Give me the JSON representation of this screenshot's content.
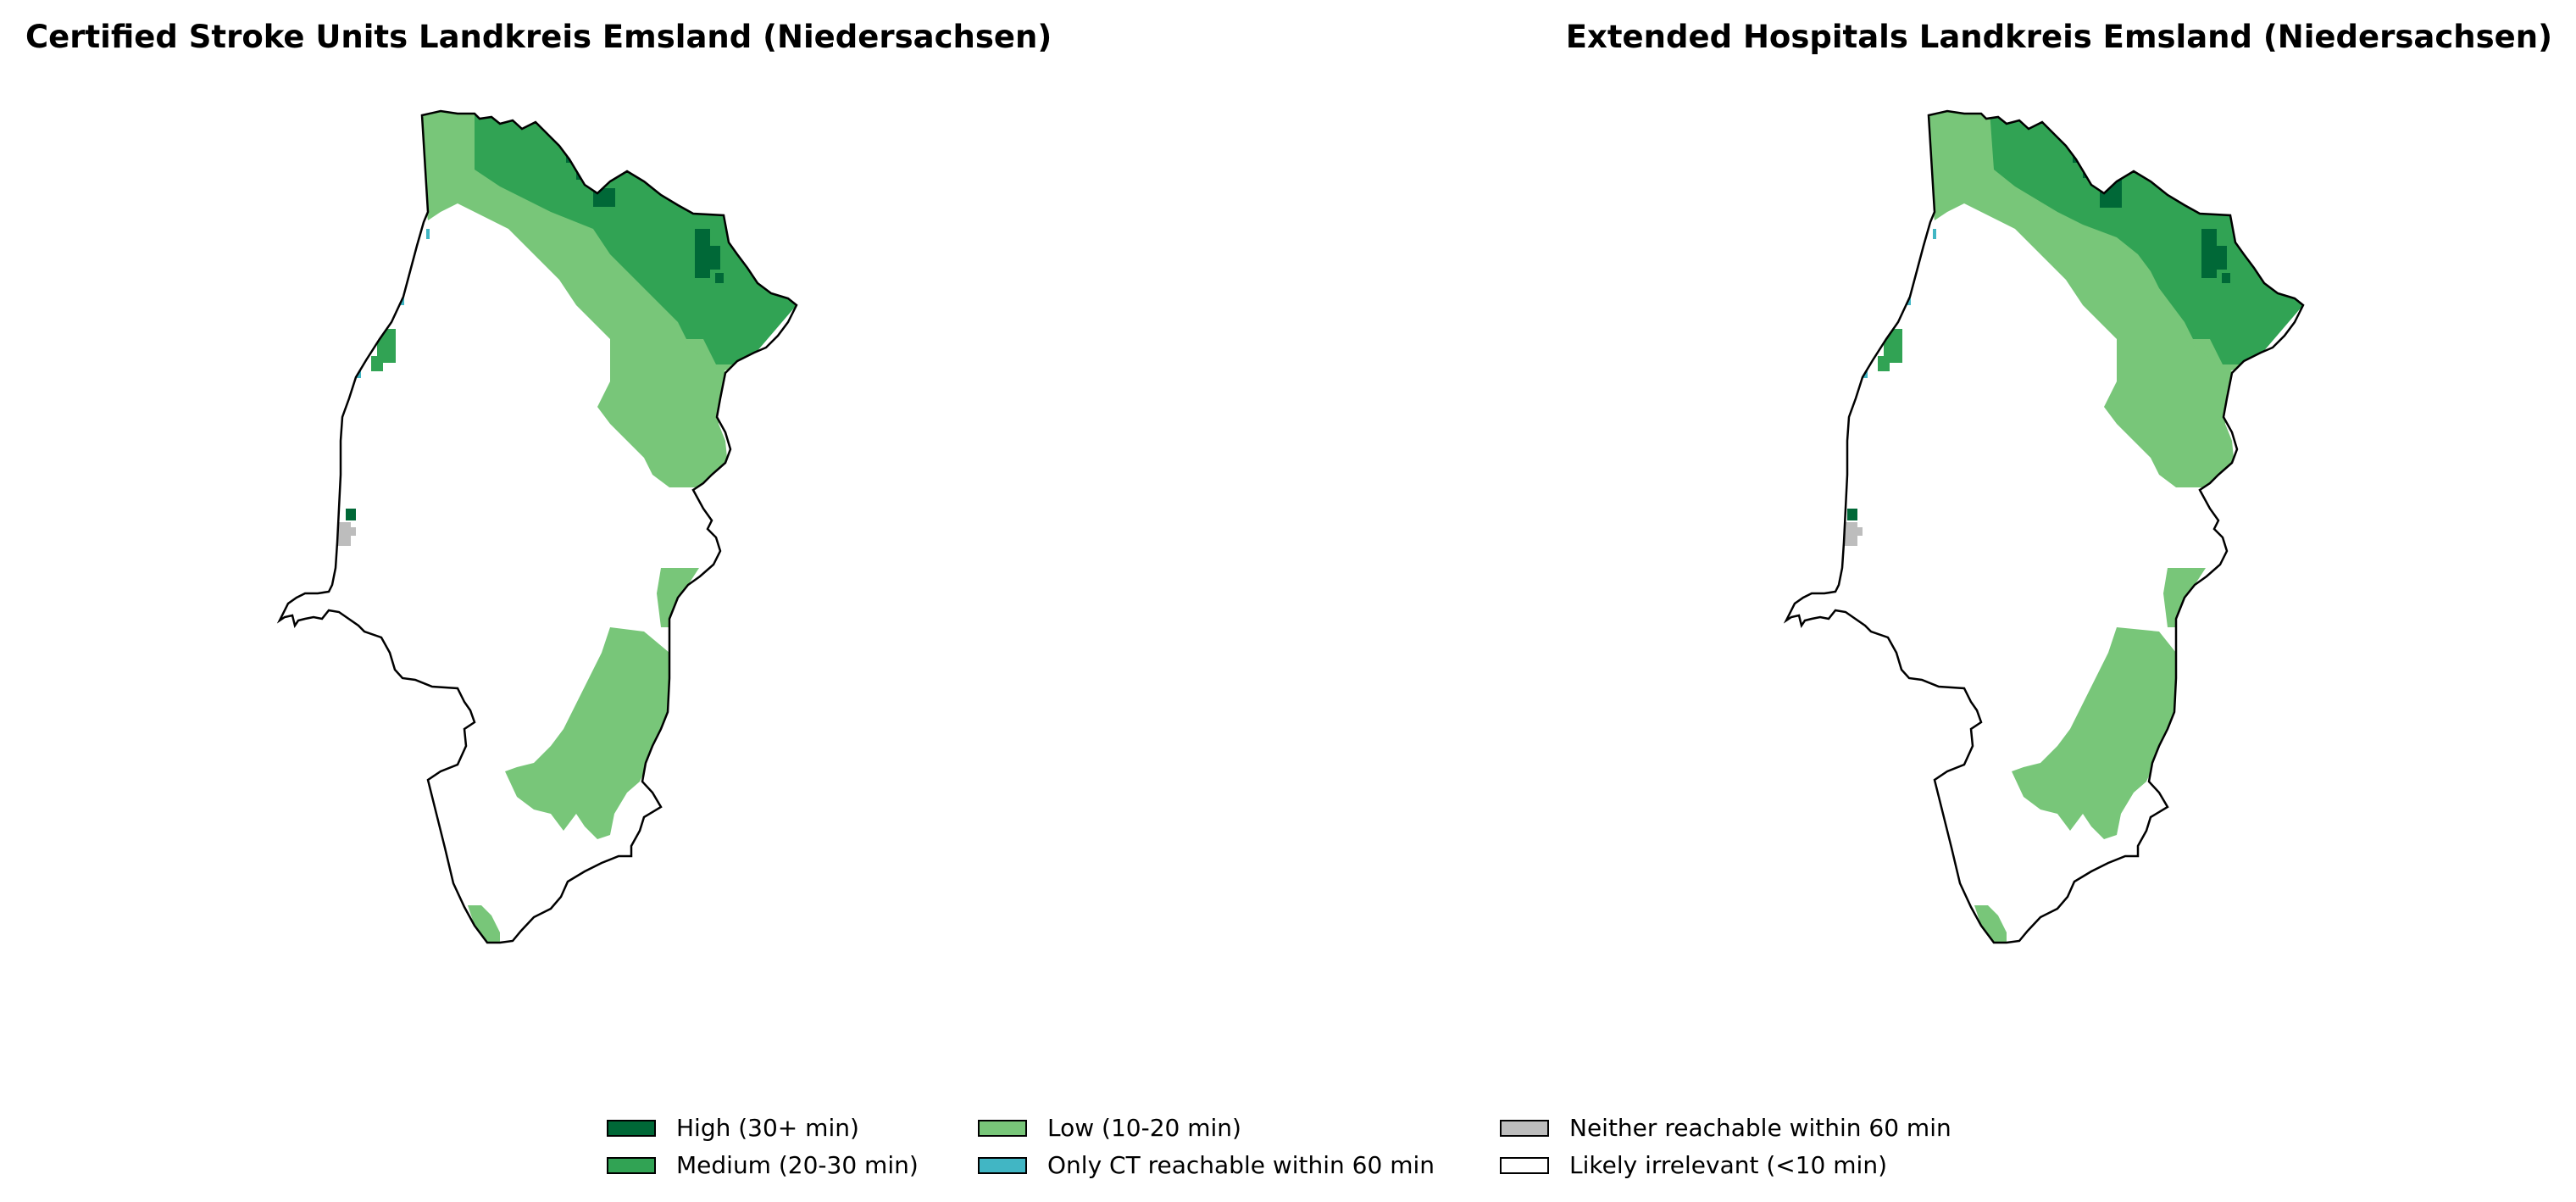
{
  "panels": [
    {
      "title": "Certified Stroke Units Landkreis Emsland (Niedersachsen)"
    },
    {
      "title": "Extended Hospitals Landkreis Emsland (Niedersachsen)"
    }
  ],
  "legend": [
    {
      "label": "High (30+ min)",
      "color": "#006837"
    },
    {
      "label": "Medium (20-30 min)",
      "color": "#31a354"
    },
    {
      "label": "Low (10-20 min)",
      "color": "#78c679"
    },
    {
      "label": "Only CT reachable within 60 min",
      "color": "#41b6c4"
    },
    {
      "label": "Neither reachable within 60 min",
      "color": "#bdbdbd"
    },
    {
      "label": "Likely irrelevant (<10 min)",
      "color": "#ffffff"
    }
  ]
}
